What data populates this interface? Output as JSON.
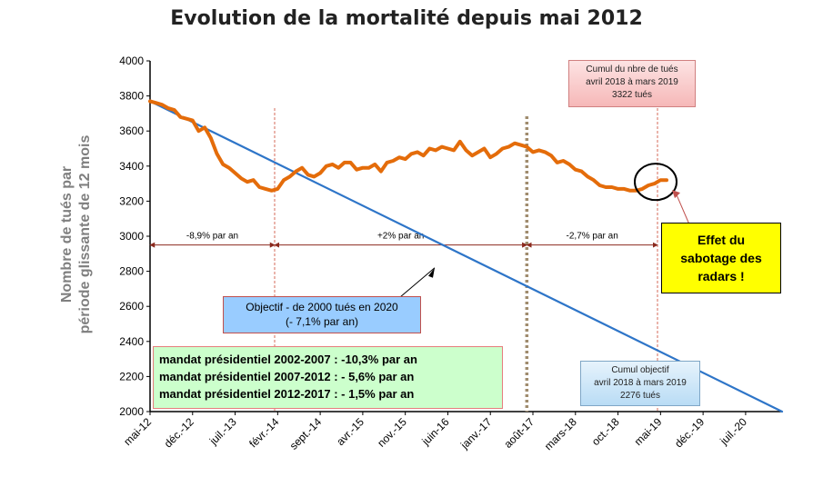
{
  "chart_data": {
    "type": "line",
    "title": "Evolution de la mortalité depuis mai 2012",
    "ylabel_line1": "Nombre de tués par",
    "ylabel_line2": "période  glissante de 12 mois",
    "ylim": [
      2000,
      4000
    ],
    "yticks": [
      2000,
      2200,
      2400,
      2600,
      2800,
      3000,
      3200,
      3400,
      3600,
      3800,
      4000
    ],
    "x_range_months": [
      0,
      104
    ],
    "xtick_labels": [
      "mai-12",
      "déc.-12",
      "juil.-13",
      "févr.-14",
      "sept.-14",
      "avr.-15",
      "nov.-15",
      "juin-16",
      "janv.-17",
      "août-17",
      "mars-18",
      "oct.-18",
      "mai-19",
      "déc.-19",
      "juil.-20"
    ],
    "xtick_months": [
      0,
      7,
      14,
      21,
      28,
      35,
      42,
      49,
      56,
      63,
      70,
      77,
      84,
      91,
      98
    ],
    "series": [
      {
        "name": "Objectif - de 2000 tués en 2020",
        "color": "#2e75c8",
        "x": [
          0,
          104
        ],
        "values": [
          3770,
          2000
        ]
      },
      {
        "name": "Cumul du nbre de tués",
        "color": "#e46c0a",
        "x": [
          0,
          1,
          2,
          3,
          4,
          5,
          6,
          7,
          8,
          9,
          10,
          11,
          12,
          13,
          14,
          15,
          16,
          17,
          18,
          19,
          20,
          21,
          22,
          23,
          24,
          25,
          26,
          27,
          28,
          29,
          30,
          31,
          32,
          33,
          34,
          35,
          36,
          37,
          38,
          39,
          40,
          41,
          42,
          43,
          44,
          45,
          46,
          47,
          48,
          49,
          50,
          51,
          52,
          53,
          54,
          55,
          56,
          57,
          58,
          59,
          60,
          61,
          62,
          63,
          64,
          65,
          66,
          67,
          68,
          69,
          70,
          71,
          72,
          73,
          74,
          75,
          76,
          77,
          78,
          79,
          80,
          81,
          82,
          83,
          84,
          85
        ],
        "values": [
          3770,
          3760,
          3750,
          3730,
          3720,
          3680,
          3670,
          3660,
          3600,
          3620,
          3560,
          3470,
          3410,
          3390,
          3360,
          3330,
          3310,
          3320,
          3280,
          3270,
          3260,
          3270,
          3320,
          3340,
          3370,
          3390,
          3350,
          3340,
          3360,
          3400,
          3410,
          3390,
          3420,
          3420,
          3380,
          3390,
          3390,
          3410,
          3370,
          3420,
          3430,
          3450,
          3440,
          3470,
          3480,
          3460,
          3500,
          3490,
          3510,
          3500,
          3490,
          3540,
          3490,
          3460,
          3480,
          3500,
          3450,
          3470,
          3500,
          3510,
          3530,
          3520,
          3510,
          3480,
          3490,
          3480,
          3460,
          3420,
          3430,
          3410,
          3380,
          3370,
          3340,
          3320,
          3290,
          3280,
          3280,
          3270,
          3270,
          3260,
          3260,
          3270,
          3290,
          3300,
          3320,
          3320
        ]
      }
    ],
    "vertical_markers": [
      {
        "month": 20.5,
        "style": "dashed",
        "color": "#d46b5a"
      },
      {
        "month": 62,
        "style": "dotted",
        "color": "#a08c6e"
      },
      {
        "month": 83.5,
        "style": "dashed",
        "color": "#d46b5a"
      }
    ],
    "trend_arrows": [
      {
        "from_month": 0,
        "to_month": 20.5,
        "label": "-8,9% par an"
      },
      {
        "from_month": 20.5,
        "to_month": 62,
        "label": "+2% par an"
      },
      {
        "from_month": 62,
        "to_month": 83.5,
        "label": "-2,7% par an"
      }
    ],
    "arrow_level": 2950,
    "grid": false
  },
  "annotations": {
    "objectif_line1": "Objectif - de 2000 tués en 2020",
    "objectif_line2": "(- 7,1% par an)",
    "mandat1": "mandat présidentiel 2002-2007 : -10,3% par an",
    "mandat2": "mandat présidentiel 2007-2012 : - 5,6% par an",
    "mandat3": "mandat présidentiel 2012-2017 : - 1,5% par an",
    "cumul_tues_line1": "Cumul du nbre de tués",
    "cumul_tues_line2": "avril 2018 à mars 2019",
    "cumul_tues_line3": "3322 tués",
    "cumul_obj_line1": "Cumul objectif",
    "cumul_obj_line2": "avril 2018 à mars 2019",
    "cumul_obj_line3": "2276 tués",
    "effet_line1": "Effet du",
    "effet_line2": "sabotage des",
    "effet_line3": "radars !"
  }
}
